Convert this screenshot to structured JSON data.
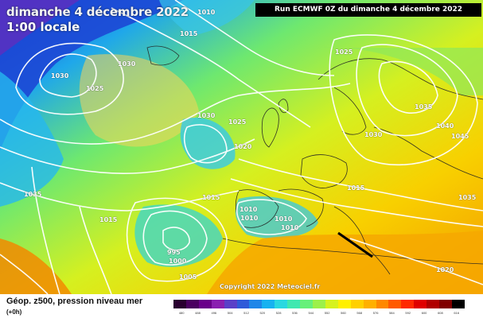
{
  "header": {
    "date": "dimanche 4 décembre 2022",
    "time": "1:00 locale",
    "run": "Run ECMWF 0Z du dimanche 4 décembre 2022"
  },
  "copyright": "Copyright 2022 Meteociel.fr",
  "footer": {
    "title": "Géop. z500, pression niveau mer",
    "subtitle": "(+0h)"
  },
  "colorbar": {
    "ticks": [
      "480",
      "488",
      "496",
      "504",
      "512",
      "520",
      "528",
      "536",
      "544",
      "552",
      "560",
      "568",
      "576",
      "584",
      "592",
      "600",
      "608",
      "616"
    ],
    "colors": [
      "#2a0030",
      "#4a0060",
      "#6a008a",
      "#8a20b0",
      "#5a40c8",
      "#2f5ad8",
      "#1f86e8",
      "#17b2f0",
      "#2ad8e0",
      "#40e8b0",
      "#66f07a",
      "#9cf04a",
      "#d6f21e",
      "#fff000",
      "#ffd000",
      "#ffb000",
      "#ff8800",
      "#ff5a00",
      "#ff2a00",
      "#e00000",
      "#b00000",
      "#800000",
      "#000000"
    ]
  },
  "pressure_labels": [
    "1010",
    "1015",
    "1030",
    "1025",
    "1030",
    "1025",
    "1030",
    "1025",
    "1020",
    "1030",
    "1035",
    "1040",
    "1045",
    "1030",
    "1015",
    "1035",
    "1015",
    "1015",
    "1010",
    "1010",
    "1010",
    "1010",
    "995",
    "1000",
    "1005",
    "1020",
    "1035",
    "1020"
  ]
}
